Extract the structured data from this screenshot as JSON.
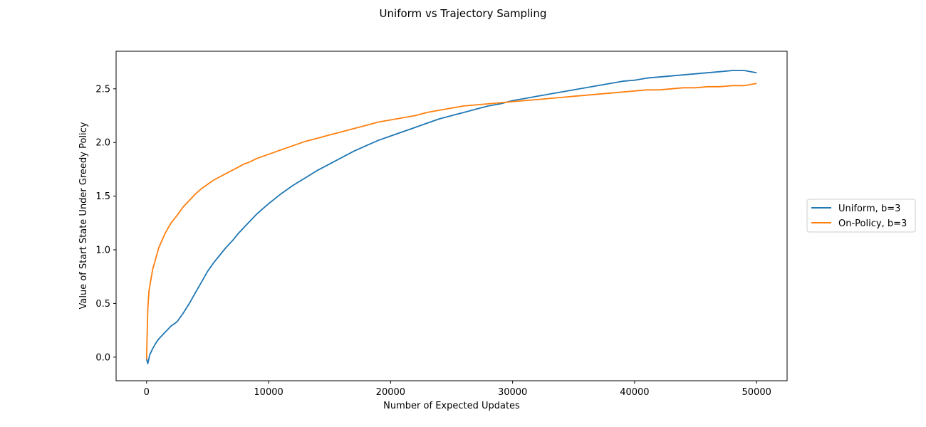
{
  "chart_data": {
    "type": "line",
    "title": "Uniform vs Trajectory Sampling",
    "xlabel": "Number of Expected Updates",
    "ylabel": "Value of Start State Under Greedy Policy",
    "xlim": [
      -2500,
      52500
    ],
    "ylim": [
      -0.22,
      2.85
    ],
    "xticks": [
      0,
      10000,
      20000,
      30000,
      40000,
      50000
    ],
    "yticks": [
      0.0,
      0.5,
      1.0,
      1.5,
      2.0,
      2.5
    ],
    "grid": false,
    "legend_position": "center-right-outside",
    "series": [
      {
        "name": "Uniform, b=3",
        "color": "#1f77b4",
        "x": [
          0,
          100,
          250,
          500,
          750,
          1000,
          1500,
          2000,
          2500,
          3000,
          3500,
          4000,
          4500,
          5000,
          5500,
          6000,
          6500,
          7000,
          7500,
          8000,
          8500,
          9000,
          9500,
          10000,
          11000,
          12000,
          13000,
          14000,
          15000,
          16000,
          17000,
          18000,
          19000,
          20000,
          21000,
          22000,
          23000,
          24000,
          25000,
          26000,
          27000,
          28000,
          29000,
          30000,
          31000,
          32000,
          33000,
          34000,
          35000,
          36000,
          37000,
          38000,
          39000,
          40000,
          41000,
          42000,
          43000,
          44000,
          45000,
          46000,
          47000,
          48000,
          49000,
          50000
        ],
        "y": [
          -0.02,
          -0.06,
          0.02,
          0.08,
          0.13,
          0.17,
          0.23,
          0.29,
          0.33,
          0.41,
          0.5,
          0.6,
          0.7,
          0.8,
          0.88,
          0.95,
          1.02,
          1.08,
          1.15,
          1.21,
          1.27,
          1.33,
          1.38,
          1.43,
          1.52,
          1.6,
          1.67,
          1.74,
          1.8,
          1.86,
          1.92,
          1.97,
          2.02,
          2.06,
          2.1,
          2.14,
          2.18,
          2.22,
          2.25,
          2.28,
          2.31,
          2.34,
          2.36,
          2.39,
          2.41,
          2.43,
          2.45,
          2.47,
          2.49,
          2.51,
          2.53,
          2.55,
          2.57,
          2.58,
          2.6,
          2.61,
          2.62,
          2.63,
          2.64,
          2.65,
          2.66,
          2.67,
          2.67,
          2.65
        ]
      },
      {
        "name": "On-Policy, b=3",
        "color": "#ff7f0e",
        "x": [
          0,
          50,
          100,
          200,
          350,
          500,
          750,
          1000,
          1500,
          2000,
          2500,
          3000,
          3500,
          4000,
          4500,
          5000,
          5500,
          6000,
          6500,
          7000,
          7500,
          8000,
          8500,
          9000,
          9500,
          10000,
          11000,
          12000,
          13000,
          14000,
          15000,
          16000,
          17000,
          18000,
          19000,
          20000,
          21000,
          22000,
          23000,
          24000,
          25000,
          26000,
          27000,
          28000,
          29000,
          30000,
          31000,
          32000,
          33000,
          34000,
          35000,
          36000,
          37000,
          38000,
          39000,
          40000,
          41000,
          42000,
          43000,
          44000,
          45000,
          46000,
          47000,
          48000,
          49000,
          50000
        ],
        "y": [
          -0.02,
          0.25,
          0.45,
          0.62,
          0.72,
          0.82,
          0.92,
          1.02,
          1.15,
          1.25,
          1.32,
          1.4,
          1.46,
          1.52,
          1.57,
          1.61,
          1.65,
          1.68,
          1.71,
          1.74,
          1.77,
          1.8,
          1.82,
          1.85,
          1.87,
          1.89,
          1.93,
          1.97,
          2.01,
          2.04,
          2.07,
          2.1,
          2.13,
          2.16,
          2.19,
          2.21,
          2.23,
          2.25,
          2.28,
          2.3,
          2.32,
          2.34,
          2.35,
          2.36,
          2.37,
          2.38,
          2.39,
          2.4,
          2.41,
          2.42,
          2.43,
          2.44,
          2.45,
          2.46,
          2.47,
          2.48,
          2.49,
          2.49,
          2.5,
          2.51,
          2.51,
          2.52,
          2.52,
          2.53,
          2.53,
          2.55
        ]
      }
    ]
  }
}
